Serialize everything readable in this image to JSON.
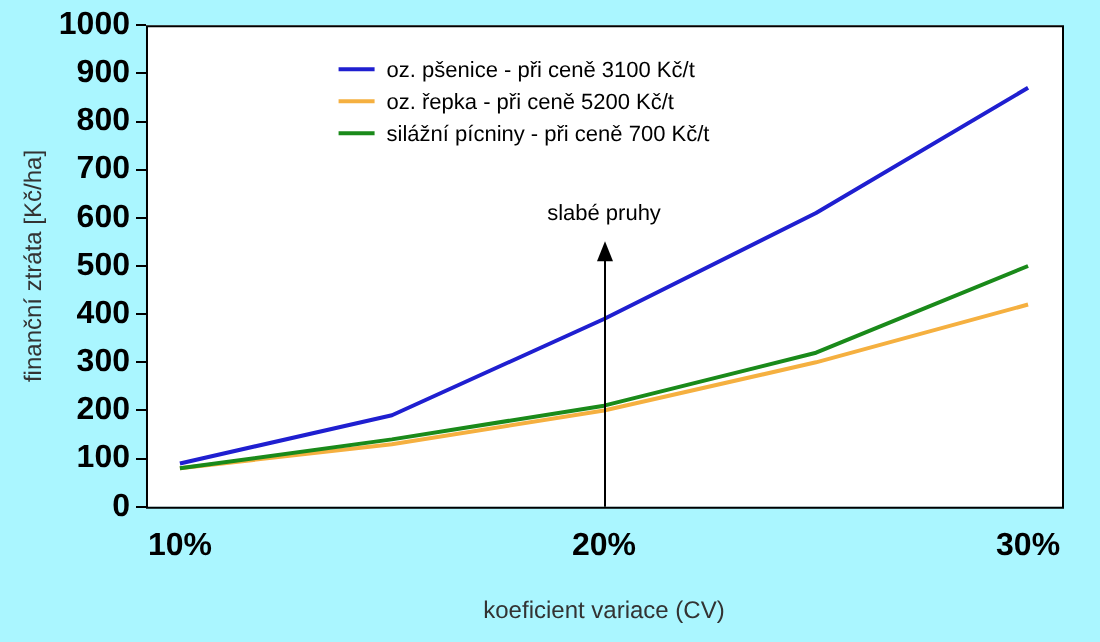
{
  "chart_data": {
    "type": "line",
    "xlabel": "koeficient variace (CV)",
    "ylabel": "finanční ztráta [Kč/ha]",
    "x": [
      10,
      15,
      20,
      25,
      30
    ],
    "series": [
      {
        "name": "oz. pšenice - při ceně 3100 Kč/t",
        "color": "#1f1fd0",
        "values": [
          90,
          190,
          390,
          610,
          870
        ]
      },
      {
        "name": "oz. řepka - při ceně 5200 Kč/t",
        "color": "#f5b040",
        "values": [
          80,
          130,
          200,
          300,
          420
        ]
      },
      {
        "name": "silážní pícniny - při ceně 700 Kč/t",
        "color": "#1a8a1a",
        "values": [
          80,
          140,
          210,
          320,
          500
        ]
      }
    ],
    "xlim": [
      9.2,
      30.8
    ],
    "xticks": [
      {
        "value": 10,
        "label": "10%"
      },
      {
        "value": 20,
        "label": "20%"
      },
      {
        "value": 30,
        "label": "30%"
      }
    ],
    "ylim": [
      0,
      1000
    ],
    "yticks": [
      0,
      100,
      200,
      300,
      400,
      500,
      600,
      700,
      800,
      900,
      1000
    ],
    "annotations": [
      "slabé pruhy"
    ],
    "grid": false,
    "legend": "top",
    "marker": "none",
    "line_style": "solid"
  }
}
